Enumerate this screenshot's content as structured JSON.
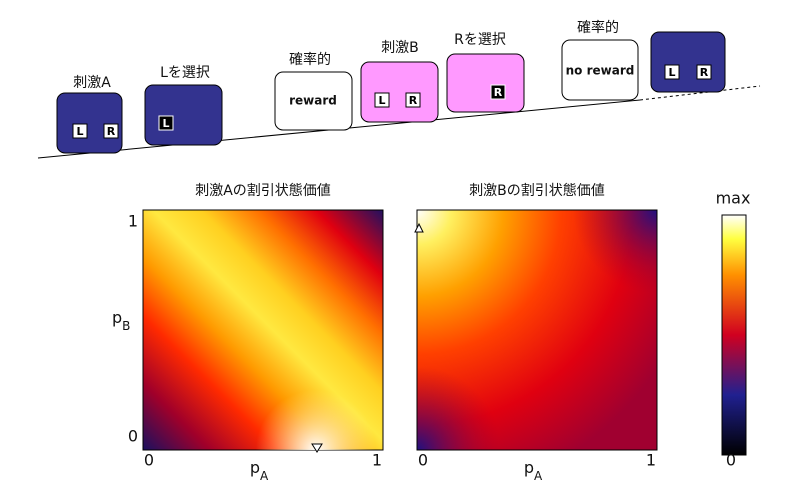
{
  "timeline": {
    "events": [
      {
        "label": "刺激A",
        "buttons": [
          "L",
          "R"
        ]
      },
      {
        "label": "Lを選択",
        "buttons": [
          "L"
        ]
      },
      {
        "label": "確率的",
        "text": "reward"
      },
      {
        "label": "刺激B",
        "buttons": [
          "L",
          "R"
        ]
      },
      {
        "label": "Rを選択",
        "buttons": [
          "R"
        ]
      },
      {
        "label": "確率的",
        "text": "no reward"
      },
      {
        "buttons": [
          "L",
          "R"
        ]
      }
    ]
  },
  "panels": [
    {
      "title": "刺激Aの割引状態価値",
      "x_label": "p",
      "x_label_sub": "A",
      "y_label": "p",
      "y_label_sub": "B",
      "x_ticks": [
        "0",
        "1"
      ],
      "y_ticks": [
        "0",
        "1"
      ]
    },
    {
      "title": "刺激Bの割引状態価値",
      "x_label": "p",
      "x_label_sub": "A",
      "x_ticks": [
        "0",
        "1"
      ]
    }
  ],
  "colorbar": {
    "top_label": "max",
    "bottom_label": "0"
  }
}
